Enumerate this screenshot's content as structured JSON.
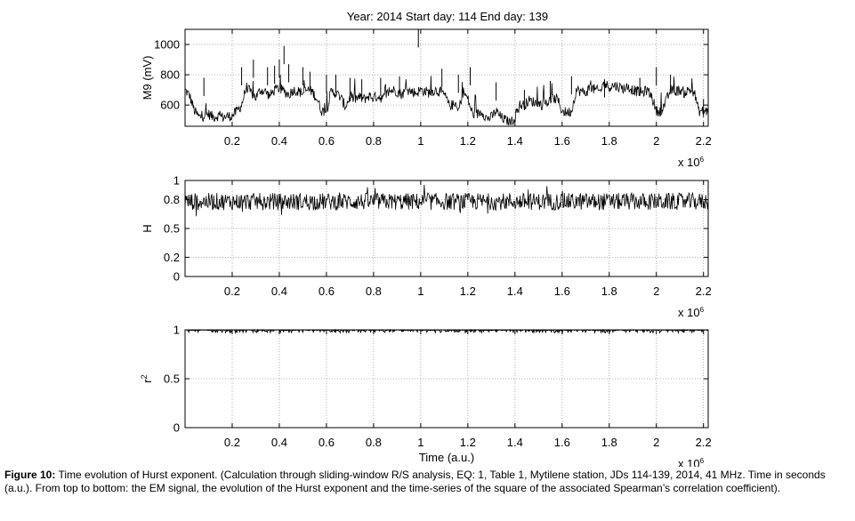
{
  "figure_title": "Year:  2014  Start day:  114  End  day: 139",
  "caption": {
    "label": "Figure 10:",
    "text": "Time evolution of Hurst exponent. (Calculation through sliding-window R/S analysis, EQ: 1, Table 1, Mytilene station, JDs 114-139, 2014, 41 MHz. Time in seconds (a.u.). From top to bottom: the EM signal, the evolution of the Hurst exponent and the time-series of the square of the associated Spearman’s correlation coefficient)."
  },
  "chart_data": [
    {
      "type": "line",
      "id": "em-signal",
      "ylabel": "M9 (mV)",
      "xlabel": "",
      "x_multiplier_label": "x 10",
      "x_multiplier_exp": "6",
      "xlim": [
        0,
        2.22
      ],
      "ylim": [
        460,
        1100
      ],
      "xticks": [
        0.2,
        0.4,
        0.6,
        0.8,
        1,
        1.2,
        1.4,
        1.6,
        1.8,
        2,
        2.2
      ],
      "xtick_labels": [
        "0.2",
        "0.4",
        "0.6",
        "0.8",
        "1",
        "1.2",
        "1.4",
        "1.6",
        "1.8",
        "2",
        "2.2"
      ],
      "yticks": [
        600,
        800,
        1000
      ],
      "ytick_labels": [
        "600",
        "800",
        "1000"
      ],
      "grid": "dotted",
      "x": [
        0.0,
        0.02,
        0.04,
        0.06,
        0.08,
        0.1,
        0.12,
        0.14,
        0.16,
        0.18,
        0.2,
        0.22,
        0.24,
        0.26,
        0.28,
        0.3,
        0.32,
        0.34,
        0.36,
        0.38,
        0.4,
        0.42,
        0.44,
        0.46,
        0.48,
        0.5,
        0.52,
        0.54,
        0.56,
        0.58,
        0.6,
        0.62,
        0.64,
        0.66,
        0.68,
        0.7,
        0.72,
        0.74,
        0.76,
        0.78,
        0.8,
        0.82,
        0.84,
        0.86,
        0.88,
        0.9,
        0.92,
        0.94,
        0.96,
        0.98,
        1.0,
        1.02,
        1.04,
        1.06,
        1.08,
        1.1,
        1.12,
        1.14,
        1.16,
        1.18,
        1.2,
        1.22,
        1.24,
        1.26,
        1.28,
        1.3,
        1.32,
        1.34,
        1.36,
        1.38,
        1.4,
        1.42,
        1.44,
        1.46,
        1.48,
        1.5,
        1.52,
        1.54,
        1.56,
        1.58,
        1.6,
        1.62,
        1.64,
        1.66,
        1.68,
        1.7,
        1.72,
        1.74,
        1.76,
        1.78,
        1.8,
        1.82,
        1.84,
        1.86,
        1.88,
        1.9,
        1.92,
        1.94,
        1.96,
        1.98,
        2.0,
        2.02,
        2.04,
        2.06,
        2.08,
        2.1,
        2.12,
        2.14,
        2.16,
        2.18,
        2.2,
        2.22
      ],
      "y": [
        700,
        660,
        560,
        520,
        530,
        540,
        520,
        530,
        520,
        525,
        530,
        560,
        600,
        720,
        680,
        650,
        700,
        690,
        660,
        700,
        710,
        690,
        670,
        700,
        690,
        680,
        700,
        690,
        640,
        560,
        560,
        690,
        680,
        650,
        590,
        650,
        640,
        650,
        640,
        660,
        650,
        660,
        640,
        680,
        700,
        690,
        670,
        700,
        690,
        680,
        700,
        690,
        680,
        700,
        690,
        670,
        600,
        600,
        560,
        690,
        640,
        540,
        540,
        560,
        510,
        520,
        560,
        520,
        500,
        480,
        520,
        600,
        600,
        630,
        620,
        610,
        600,
        620,
        640,
        640,
        560,
        550,
        560,
        700,
        690,
        680,
        720,
        700,
        690,
        740,
        720,
        730,
        720,
        710,
        720,
        700,
        690,
        680,
        700,
        660,
        560,
        560,
        620,
        700,
        690,
        700,
        680,
        700,
        690,
        560,
        560,
        560
      ],
      "peaks": [
        [
          0.08,
          780
        ],
        [
          0.24,
          850
        ],
        [
          0.29,
          900
        ],
        [
          0.35,
          850
        ],
        [
          0.38,
          860
        ],
        [
          0.4,
          900
        ],
        [
          0.42,
          990
        ],
        [
          0.44,
          870
        ],
        [
          0.5,
          850
        ],
        [
          0.53,
          820
        ],
        [
          0.6,
          800
        ],
        [
          0.64,
          800
        ],
        [
          0.7,
          780
        ],
        [
          0.75,
          770
        ],
        [
          0.83,
          780
        ],
        [
          0.91,
          790
        ],
        [
          0.99,
          1100
        ],
        [
          1.09,
          840
        ],
        [
          1.16,
          800
        ],
        [
          1.21,
          850
        ],
        [
          1.32,
          750
        ],
        [
          1.44,
          700
        ],
        [
          1.55,
          760
        ],
        [
          1.64,
          790
        ],
        [
          1.78,
          770
        ],
        [
          1.93,
          780
        ],
        [
          2.0,
          850
        ],
        [
          2.06,
          800
        ],
        [
          2.2,
          640
        ]
      ]
    },
    {
      "type": "line",
      "id": "hurst",
      "ylabel": "H",
      "xlabel": "",
      "x_multiplier_label": "x 10",
      "x_multiplier_exp": "6",
      "xlim": [
        0,
        2.22
      ],
      "ylim": [
        0,
        1
      ],
      "xticks": [
        0.2,
        0.4,
        0.6,
        0.8,
        1,
        1.2,
        1.4,
        1.6,
        1.8,
        2,
        2.2
      ],
      "xtick_labels": [
        "0.2",
        "0.4",
        "0.6",
        "0.8",
        "1",
        "1.2",
        "1.4",
        "1.6",
        "1.8",
        "2",
        "2.2"
      ],
      "yticks": [
        0,
        0.2,
        0.5,
        0.8,
        1
      ],
      "ytick_labels": [
        "0",
        "0.2",
        "0.5",
        "0.8",
        "1"
      ],
      "grid": "dotted",
      "mean": 0.78,
      "band": [
        0.62,
        0.97
      ],
      "samples": 420
    },
    {
      "type": "line",
      "id": "r-squared",
      "ylabel": "r²",
      "ylabel_base": "r",
      "ylabel_exp": "2",
      "xlabel": "Time (a.u.)",
      "x_multiplier_label": "x 10",
      "x_multiplier_exp": "6",
      "xlim": [
        0,
        2.22
      ],
      "ylim": [
        0,
        1
      ],
      "xticks": [
        0.2,
        0.4,
        0.6,
        0.8,
        1,
        1.2,
        1.4,
        1.6,
        1.8,
        2,
        2.2
      ],
      "xtick_labels": [
        "0.2",
        "0.4",
        "0.6",
        "0.8",
        "1",
        "1.2",
        "1.4",
        "1.6",
        "1.8",
        "2",
        "2.2"
      ],
      "yticks": [
        0,
        0.5,
        1
      ],
      "ytick_labels": [
        "0",
        "0.5",
        "1"
      ],
      "grid": "dotted",
      "values_min": 0.97,
      "values_max": 1.0,
      "samples": 420
    }
  ]
}
